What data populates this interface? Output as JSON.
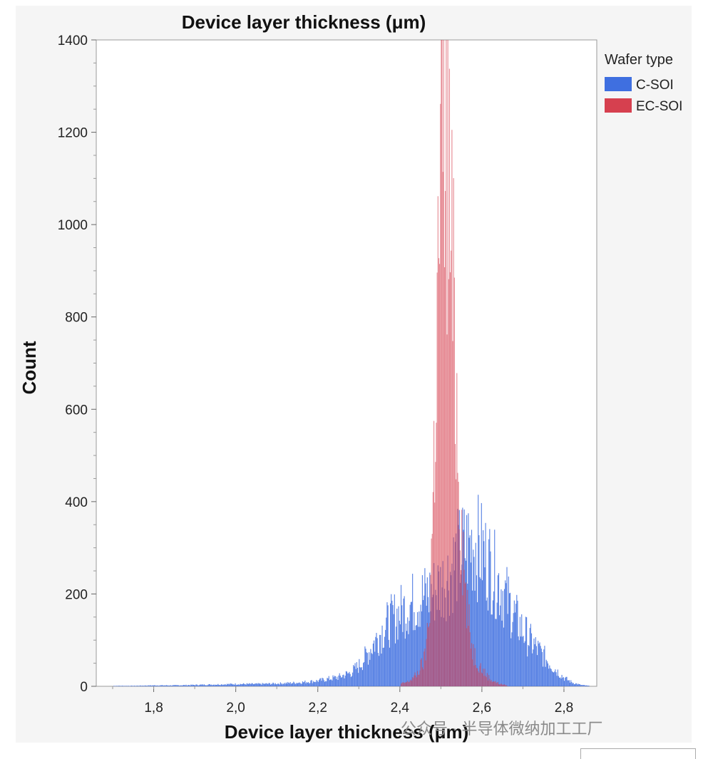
{
  "chart_data": {
    "type": "bar",
    "title": "Device layer thickness (μm)",
    "xlabel": "Device layer thickness (μm)",
    "ylabel": "Count",
    "xlim": [
      1.66,
      2.88
    ],
    "ylim": [
      0,
      1400
    ],
    "x_ticks": [
      "1,8",
      "2,0",
      "2,2",
      "2,4",
      "2,6",
      "2,8"
    ],
    "x_tick_values": [
      1.8,
      2.0,
      2.2,
      2.4,
      2.6,
      2.8
    ],
    "y_ticks": [
      "0",
      "200",
      "400",
      "600",
      "800",
      "1000",
      "1200",
      "1400"
    ],
    "y_tick_values": [
      0,
      200,
      400,
      600,
      800,
      1000,
      1200,
      1400
    ],
    "legend": {
      "title": "Wafer type",
      "position": "right"
    },
    "series": [
      {
        "name": "C-SOI",
        "color": "#3f6fe0",
        "x": [
          1.7,
          1.75,
          1.8,
          1.85,
          1.9,
          1.95,
          2.0,
          2.05,
          2.1,
          2.15,
          2.2,
          2.25,
          2.28,
          2.3,
          2.32,
          2.34,
          2.36,
          2.38,
          2.4,
          2.42,
          2.44,
          2.46,
          2.48,
          2.5,
          2.52,
          2.54,
          2.56,
          2.58,
          2.6,
          2.62,
          2.64,
          2.66,
          2.68,
          2.7,
          2.72,
          2.74,
          2.76,
          2.78,
          2.8,
          2.82,
          2.84,
          2.86
        ],
        "values": [
          1,
          1,
          2,
          2,
          3,
          4,
          5,
          5,
          6,
          8,
          12,
          20,
          30,
          45,
          70,
          100,
          125,
          145,
          160,
          175,
          185,
          195,
          205,
          220,
          245,
          280,
          300,
          310,
          290,
          260,
          225,
          190,
          150,
          120,
          95,
          75,
          55,
          35,
          18,
          8,
          3,
          1
        ]
      },
      {
        "name": "EC-SOI",
        "color": "#d6404f",
        "x": [
          2.4,
          2.42,
          2.44,
          2.46,
          2.47,
          2.48,
          2.49,
          2.5,
          2.51,
          2.52,
          2.53,
          2.54,
          2.55,
          2.56,
          2.57,
          2.58,
          2.6,
          2.62,
          2.64,
          2.66
        ],
        "values": [
          5,
          10,
          25,
          60,
          150,
          400,
          800,
          1150,
          1250,
          1050,
          800,
          550,
          350,
          200,
          110,
          70,
          35,
          15,
          6,
          2
        ]
      }
    ]
  },
  "watermark": {
    "text": "公众号 · 半导体微纳加工工厂"
  }
}
